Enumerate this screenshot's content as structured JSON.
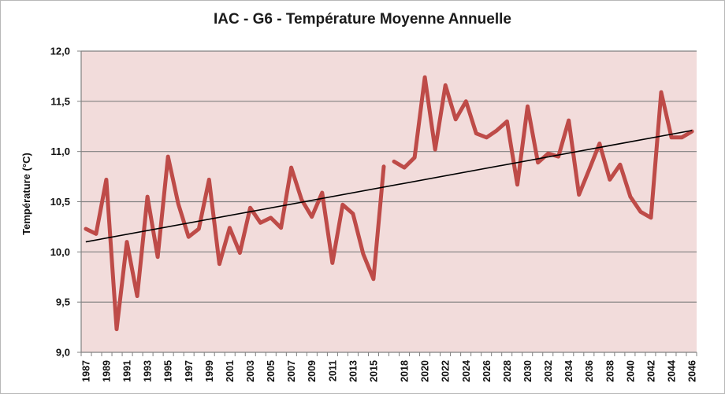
{
  "chart_data": {
    "type": "line",
    "title": "IAC - G6 - Température Moyenne Annuelle",
    "xlabel": "",
    "ylabel": "Température (°C)",
    "ylim": [
      9.0,
      12.0
    ],
    "y_ticks": [
      "9,0",
      "9,5",
      "10,0",
      "10,5",
      "11,0",
      "11,5",
      "12,0"
    ],
    "x_tick_labels": [
      "1987",
      "1989",
      "1991",
      "1993",
      "1995",
      "1997",
      "1999",
      "2001",
      "2003",
      "2005",
      "2007",
      "2009",
      "2011",
      "2013",
      "2015",
      "2018",
      "2020",
      "2022",
      "2024",
      "2026",
      "2028",
      "2030",
      "2032",
      "2034",
      "2036",
      "2038",
      "2040",
      "2042",
      "2044",
      "2046"
    ],
    "grid": true,
    "legend": "none",
    "colors": {
      "series": "#be4b48",
      "trend": "#000000",
      "plot_background": "#f2dcdb",
      "gridline": "#808080"
    },
    "series": [
      {
        "segments": [
          {
            "x": [
              1987,
              1988,
              1989,
              1990,
              1991,
              1992,
              1993,
              1994,
              1995,
              1996,
              1997,
              1998,
              1999,
              2000,
              2001,
              2002,
              2003,
              2004,
              2005,
              2006,
              2007,
              2008,
              2009,
              2010,
              2011,
              2012,
              2013,
              2014,
              2015,
              2016
            ],
            "y": [
              10.23,
              10.18,
              10.72,
              9.23,
              10.1,
              9.56,
              10.55,
              9.95,
              10.95,
              10.48,
              10.15,
              10.23,
              10.72,
              9.88,
              10.24,
              9.99,
              10.44,
              10.29,
              10.34,
              10.24,
              10.84,
              10.52,
              10.35,
              10.59,
              9.89,
              10.47,
              10.38,
              9.98,
              9.73,
              10.85
            ]
          },
          {
            "x": [
              2017,
              2018,
              2019,
              2020,
              2021,
              2022,
              2023,
              2024,
              2025,
              2026,
              2027,
              2028,
              2029,
              2030,
              2031,
              2032,
              2033,
              2034,
              2035,
              2036,
              2037,
              2038,
              2039,
              2040,
              2041,
              2042,
              2043,
              2044,
              2045,
              2046
            ],
            "y": [
              10.9,
              10.84,
              10.94,
              11.74,
              11.02,
              11.66,
              11.32,
              11.5,
              11.18,
              11.14,
              11.21,
              11.3,
              10.67,
              11.45,
              10.89,
              10.98,
              10.95,
              11.31,
              10.57,
              10.82,
              11.08,
              10.72,
              10.87,
              10.55,
              10.4,
              10.34,
              11.59,
              11.14,
              11.14,
              11.2
            ]
          }
        ]
      }
    ],
    "trendline": {
      "x": [
        1987,
        2046
      ],
      "y": [
        10.1,
        11.21
      ]
    }
  }
}
